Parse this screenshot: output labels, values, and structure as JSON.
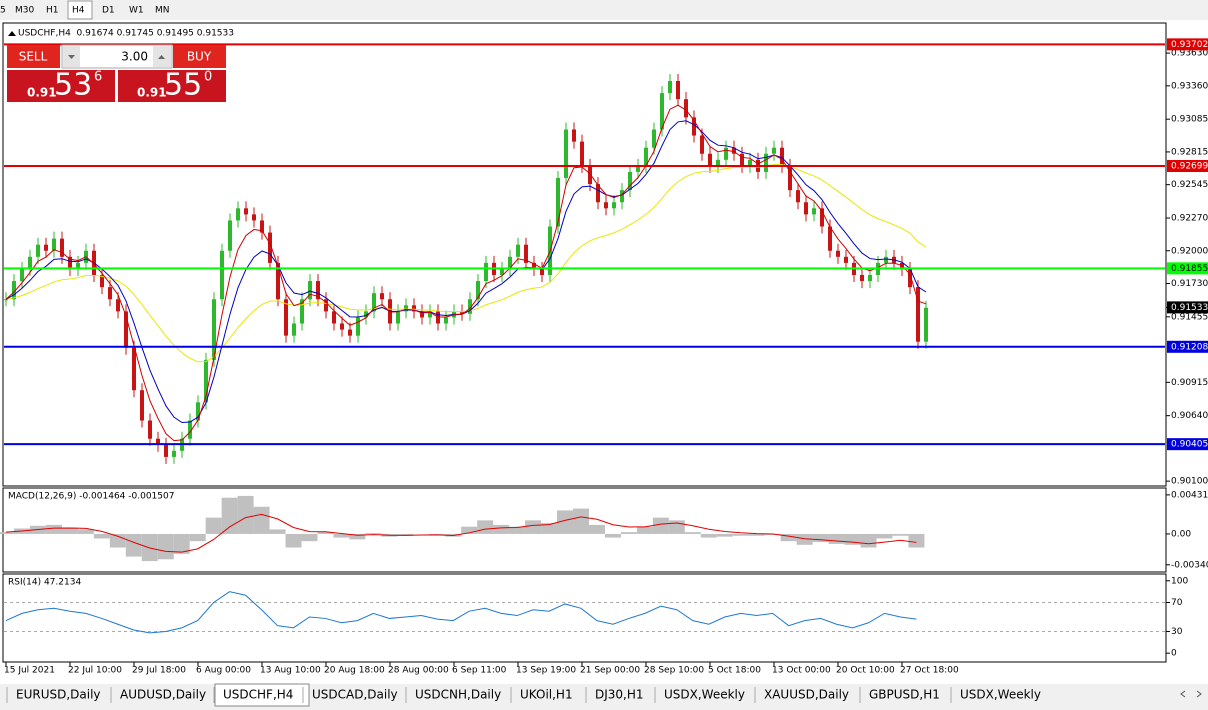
{
  "toolbar": {
    "timeframes": [
      "5",
      "M30",
      "H1",
      "H4",
      "D1",
      "W1",
      "MN"
    ],
    "active": 3
  },
  "header": "USDCHF,H4  0.91674 0.91745 0.91495 0.91533",
  "trade_panel": {
    "sell": "SELL",
    "buy": "BUY",
    "lots": "3.00",
    "sell_price": {
      "big": "0.91",
      "main": "53",
      "pip": "6"
    },
    "buy_price": {
      "big": "0.91",
      "main": "55",
      "pip": "0"
    }
  },
  "chart_data": [
    {
      "type": "candlestick",
      "colors": {
        "up": "#2eb82e",
        "down": "#c81414"
      },
      "values": [
        0.916,
        0.9175,
        0.9185,
        0.9195,
        0.9205,
        0.92,
        0.921,
        0.9195,
        0.9185,
        0.919,
        0.92,
        0.918,
        0.917,
        0.916,
        0.915,
        0.912,
        0.9085,
        0.906,
        0.9045,
        0.904,
        0.903,
        0.9035,
        0.9045,
        0.906,
        0.9075,
        0.911,
        0.916,
        0.92,
        0.9225,
        0.9235,
        0.923,
        0.9225,
        0.9215,
        0.919,
        0.916,
        0.913,
        0.914,
        0.916,
        0.9175,
        0.916,
        0.915,
        0.914,
        0.9135,
        0.913,
        0.9145,
        0.915,
        0.9165,
        0.916,
        0.914,
        0.915,
        0.9155,
        0.915,
        0.9145,
        0.915,
        0.914,
        0.9145,
        0.915,
        0.9148,
        0.916,
        0.9175,
        0.919,
        0.918,
        0.9185,
        0.9195,
        0.9205,
        0.919,
        0.9185,
        0.918,
        0.922,
        0.926,
        0.93,
        0.929,
        0.927,
        0.9255,
        0.924,
        0.9235,
        0.924,
        0.925,
        0.9265,
        0.927,
        0.9285,
        0.93,
        0.933,
        0.934,
        0.9325,
        0.931,
        0.9295,
        0.928,
        0.927,
        0.9275,
        0.9285,
        0.928,
        0.927,
        0.9275,
        0.9265,
        0.928,
        0.9285,
        0.927,
        0.925,
        0.924,
        0.923,
        0.9235,
        0.922,
        0.92,
        0.9195,
        0.919,
        0.918,
        0.9175,
        0.918,
        0.919,
        0.9195,
        0.919,
        0.9185,
        0.917,
        0.9125,
        0.9153
      ],
      "xlim": [
        -0.25,
        144.875
      ],
      "xticks": [
        {
          "value": 0,
          "label": "15 Jul 2021"
        },
        {
          "value": 8,
          "label": "22 Jul 10:00"
        },
        {
          "value": 16,
          "label": "29 Jul 18:00"
        },
        {
          "value": 24,
          "label": "6 Aug 00:00"
        },
        {
          "value": 32,
          "label": "13 Aug 10:00"
        },
        {
          "value": 40,
          "label": "20 Aug 18:00"
        },
        {
          "value": 48,
          "label": "28 Aug 00:00"
        },
        {
          "value": 56,
          "label": "6 Sep 11:00"
        },
        {
          "value": 64,
          "label": "13 Sep 19:00"
        },
        {
          "value": 72,
          "label": "21 Sep 00:00"
        },
        {
          "value": 80,
          "label": "28 Sep 10:00"
        },
        {
          "value": 88,
          "label": "5 Oct 18:00"
        },
        {
          "value": 96,
          "label": "13 Oct 00:00"
        },
        {
          "value": 104,
          "label": "20 Oct 10:00"
        },
        {
          "value": 112,
          "label": "27 Oct 18:00"
        }
      ],
      "ylim": [
        0.9006,
        0.9387
      ],
      "yticks": [
        {
          "value": 0.9363,
          "label": "0.93630"
        },
        {
          "value": 0.9336,
          "label": "0.93360"
        },
        0.93085,
        0.92815,
        0.92545,
        {
          "value": 0.9227,
          "label": "0.92270"
        },
        {
          "value": 0.92,
          "label": "0.92000"
        },
        {
          "value": 0.9173,
          "label": "0.91730"
        },
        0.91455,
        0.90915,
        {
          "value": 0.9064,
          "label": "0.90640"
        },
        {
          "value": 0.901,
          "label": "0.90100"
        }
      ],
      "lines": [
        {
          "value": 0.93702,
          "color": "#e00000"
        },
        {
          "value": 0.92699,
          "color": "#e00000"
        },
        {
          "value": 0.91855,
          "color": "#00ff00"
        },
        {
          "value": 0.91208,
          "color": "#0000e0"
        },
        {
          "value": 0.90405,
          "color": "#0000e0"
        }
      ],
      "last_price": 0.91533
    },
    {
      "type": "macd",
      "title": "MACD(12,26,9) -0.001464 -0.001507",
      "color": "#c0c0c0",
      "signal_color": "#e00000",
      "values": [
        0.0002,
        0.0006,
        0.0009,
        0.001,
        0.0007,
        0.0005,
        -0.0005,
        -0.0015,
        -0.0025,
        -0.003,
        -0.0028,
        -0.0022,
        -0.0008,
        0.0018,
        0.004,
        0.0042,
        0.003,
        0.0005,
        -0.0015,
        -0.0008,
        0.0002,
        -0.0004,
        -0.0006,
        0.0001,
        -0.0003,
        -0.0002,
        0,
        -0.0001,
        -0.0003,
        0.0008,
        0.0015,
        0.001,
        0.0008,
        0.0015,
        0.0012,
        0.0026,
        0.0028,
        0.001,
        -0.0004,
        0.0002,
        0.0008,
        0.0018,
        0.0015,
        0.0002,
        -0.0004,
        -0.0003,
        -0.0002,
        -0.0002,
        -0.0001,
        -0.0008,
        -0.0012,
        -0.0009,
        -0.0011,
        -0.0012,
        -0.0015,
        -0.0005,
        -0.0002,
        -0.0015
      ],
      "xlim": [
        -0.125,
        72.5625
      ],
      "ylim": [
        -0.00409,
        0.00496
      ],
      "yticks": [
        0.00431,
        {
          "value": 0,
          "label": "0.00"
        },
        -0.003405
      ]
    },
    {
      "type": "rsi",
      "title": "RSI(14) 47.2134",
      "color": "#1e78d2",
      "values": [
        45,
        55,
        60,
        62,
        58,
        55,
        48,
        40,
        32,
        28,
        30,
        35,
        45,
        70,
        85,
        80,
        60,
        38,
        35,
        50,
        48,
        42,
        45,
        55,
        48,
        50,
        52,
        47,
        45,
        58,
        62,
        55,
        52,
        60,
        58,
        68,
        62,
        45,
        40,
        48,
        55,
        65,
        60,
        45,
        40,
        50,
        55,
        52,
        55,
        38,
        45,
        48,
        40,
        35,
        42,
        55,
        50,
        47
      ],
      "xlim": [
        -0.125,
        72.5625
      ],
      "ylim": [
        -10.8,
        108
      ],
      "yticks": [
        100,
        70,
        30,
        0
      ]
    }
  ],
  "tabs": [
    "EURUSD,Daily",
    "AUDUSD,Daily",
    "USDCHF,H4",
    "USDCAD,Daily",
    "USDCNH,Daily",
    "UKOil,H1",
    "DJ30,H1",
    "USDX,Weekly",
    "XAUUSD,Daily",
    "GBPUSD,H1",
    "USDX,Weekly"
  ],
  "active_tab": 2
}
